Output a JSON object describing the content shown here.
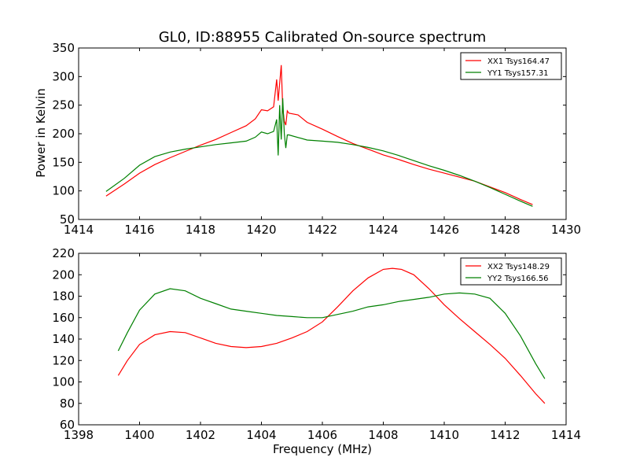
{
  "figure": {
    "title": "GL0, ID:88955 Calibrated On-source spectrum",
    "ylabel_top": "Power in Kelvin",
    "xlabel_bottom": "Frequency (MHz)"
  },
  "chart_data": [
    {
      "type": "line",
      "title": "GL0, ID:88955 Calibrated On-source spectrum",
      "xlabel": "",
      "ylabel": "Power in Kelvin",
      "xlim": [
        1414,
        1430
      ],
      "ylim": [
        50,
        350
      ],
      "xticks": [
        1414,
        1416,
        1418,
        1420,
        1422,
        1424,
        1426,
        1428,
        1430
      ],
      "yticks": [
        50,
        100,
        150,
        200,
        250,
        300,
        350
      ],
      "grid": false,
      "legend": "top-right",
      "series": [
        {
          "name": "XX1 Tsys164.47",
          "color": "#ff0000",
          "points": [
            [
              1414.9,
              91
            ],
            [
              1415.5,
              112
            ],
            [
              1416,
              131
            ],
            [
              1416.5,
              146
            ],
            [
              1417,
              158
            ],
            [
              1417.5,
              169
            ],
            [
              1418,
              180
            ],
            [
              1418.5,
              190
            ],
            [
              1419,
              202
            ],
            [
              1419.5,
              214
            ],
            [
              1419.8,
              226
            ],
            [
              1420,
              242
            ],
            [
              1420.2,
              240
            ],
            [
              1420.4,
              247
            ],
            [
              1420.5,
              295
            ],
            [
              1420.55,
              258
            ],
            [
              1420.65,
              320
            ],
            [
              1420.7,
              245
            ],
            [
              1420.75,
              222
            ],
            [
              1420.8,
              215
            ],
            [
              1420.85,
              240
            ],
            [
              1420.9,
              236
            ],
            [
              1421.2,
              233
            ],
            [
              1421.5,
              220
            ],
            [
              1422,
              208
            ],
            [
              1422.5,
              195
            ],
            [
              1423,
              183
            ],
            [
              1423.5,
              173
            ],
            [
              1424,
              163
            ],
            [
              1424.5,
              155
            ],
            [
              1425,
              146
            ],
            [
              1425.5,
              138
            ],
            [
              1426,
              131
            ],
            [
              1426.5,
              124
            ],
            [
              1427,
              117
            ],
            [
              1427.5,
              107
            ],
            [
              1428,
              97
            ],
            [
              1428.5,
              85
            ],
            [
              1428.9,
              76
            ]
          ]
        },
        {
          "name": "YY1 Tsys157.31",
          "color": "#008000",
          "points": [
            [
              1414.9,
              99
            ],
            [
              1415.5,
              122
            ],
            [
              1416,
              145
            ],
            [
              1416.5,
              160
            ],
            [
              1417,
              168
            ],
            [
              1417.5,
              173
            ],
            [
              1418,
              177
            ],
            [
              1418.5,
              181
            ],
            [
              1419,
              184
            ],
            [
              1419.5,
              187
            ],
            [
              1419.8,
              194
            ],
            [
              1420,
              203
            ],
            [
              1420.2,
              200
            ],
            [
              1420.4,
              204
            ],
            [
              1420.5,
              225
            ],
            [
              1420.55,
              162
            ],
            [
              1420.6,
              250
            ],
            [
              1420.65,
              190
            ],
            [
              1420.7,
              262
            ],
            [
              1420.75,
              200
            ],
            [
              1420.8,
              175
            ],
            [
              1420.85,
              198
            ],
            [
              1420.9,
              198
            ],
            [
              1421.5,
              189
            ],
            [
              1422,
              187
            ],
            [
              1422.5,
              185
            ],
            [
              1423,
              181
            ],
            [
              1423.5,
              176
            ],
            [
              1424,
              170
            ],
            [
              1424.5,
              162
            ],
            [
              1425,
              153
            ],
            [
              1425.5,
              144
            ],
            [
              1426,
              136
            ],
            [
              1426.5,
              127
            ],
            [
              1427,
              117
            ],
            [
              1427.5,
              106
            ],
            [
              1428,
              94
            ],
            [
              1428.5,
              82
            ],
            [
              1428.9,
              73
            ]
          ]
        }
      ]
    },
    {
      "type": "line",
      "title": "",
      "xlabel": "Frequency (MHz)",
      "ylabel": "",
      "xlim": [
        1398,
        1414
      ],
      "ylim": [
        60,
        220
      ],
      "xticks": [
        1398,
        1400,
        1402,
        1404,
        1406,
        1408,
        1410,
        1412,
        1414
      ],
      "yticks": [
        60,
        80,
        100,
        120,
        140,
        160,
        180,
        200,
        220
      ],
      "grid": false,
      "legend": "top-right",
      "series": [
        {
          "name": "XX2 Tsys148.29",
          "color": "#ff0000",
          "points": [
            [
              1399.3,
              106
            ],
            [
              1399.6,
              120
            ],
            [
              1400,
              135
            ],
            [
              1400.5,
              144
            ],
            [
              1401,
              147
            ],
            [
              1401.5,
              146
            ],
            [
              1402,
              141
            ],
            [
              1402.5,
              136
            ],
            [
              1403,
              133
            ],
            [
              1403.5,
              132
            ],
            [
              1404,
              133
            ],
            [
              1404.5,
              136
            ],
            [
              1405,
              141
            ],
            [
              1405.5,
              147
            ],
            [
              1406,
              156
            ],
            [
              1406.5,
              170
            ],
            [
              1407,
              185
            ],
            [
              1407.5,
              197
            ],
            [
              1408,
              205
            ],
            [
              1408.3,
              206
            ],
            [
              1408.6,
              205
            ],
            [
              1409,
              200
            ],
            [
              1409.5,
              187
            ],
            [
              1410,
              172
            ],
            [
              1410.5,
              159
            ],
            [
              1411,
              147
            ],
            [
              1411.5,
              135
            ],
            [
              1412,
              122
            ],
            [
              1412.5,
              106
            ],
            [
              1413,
              89
            ],
            [
              1413.3,
              80
            ]
          ]
        },
        {
          "name": "YY2 Tsys166.56",
          "color": "#008000",
          "points": [
            [
              1399.3,
              129
            ],
            [
              1399.6,
              146
            ],
            [
              1400,
              167
            ],
            [
              1400.5,
              182
            ],
            [
              1401,
              187
            ],
            [
              1401.5,
              185
            ],
            [
              1402,
              178
            ],
            [
              1402.5,
              173
            ],
            [
              1403,
              168
            ],
            [
              1403.5,
              166
            ],
            [
              1404,
              164
            ],
            [
              1404.5,
              162
            ],
            [
              1405,
              161
            ],
            [
              1405.5,
              160
            ],
            [
              1406,
              160
            ],
            [
              1406.5,
              163
            ],
            [
              1407,
              166
            ],
            [
              1407.5,
              170
            ],
            [
              1408,
              172
            ],
            [
              1408.5,
              175
            ],
            [
              1409,
              177
            ],
            [
              1409.5,
              179
            ],
            [
              1410,
              182
            ],
            [
              1410.5,
              183
            ],
            [
              1411,
              182
            ],
            [
              1411.5,
              178
            ],
            [
              1412,
              164
            ],
            [
              1412.5,
              143
            ],
            [
              1413,
              117
            ],
            [
              1413.3,
              103
            ]
          ]
        }
      ]
    }
  ]
}
